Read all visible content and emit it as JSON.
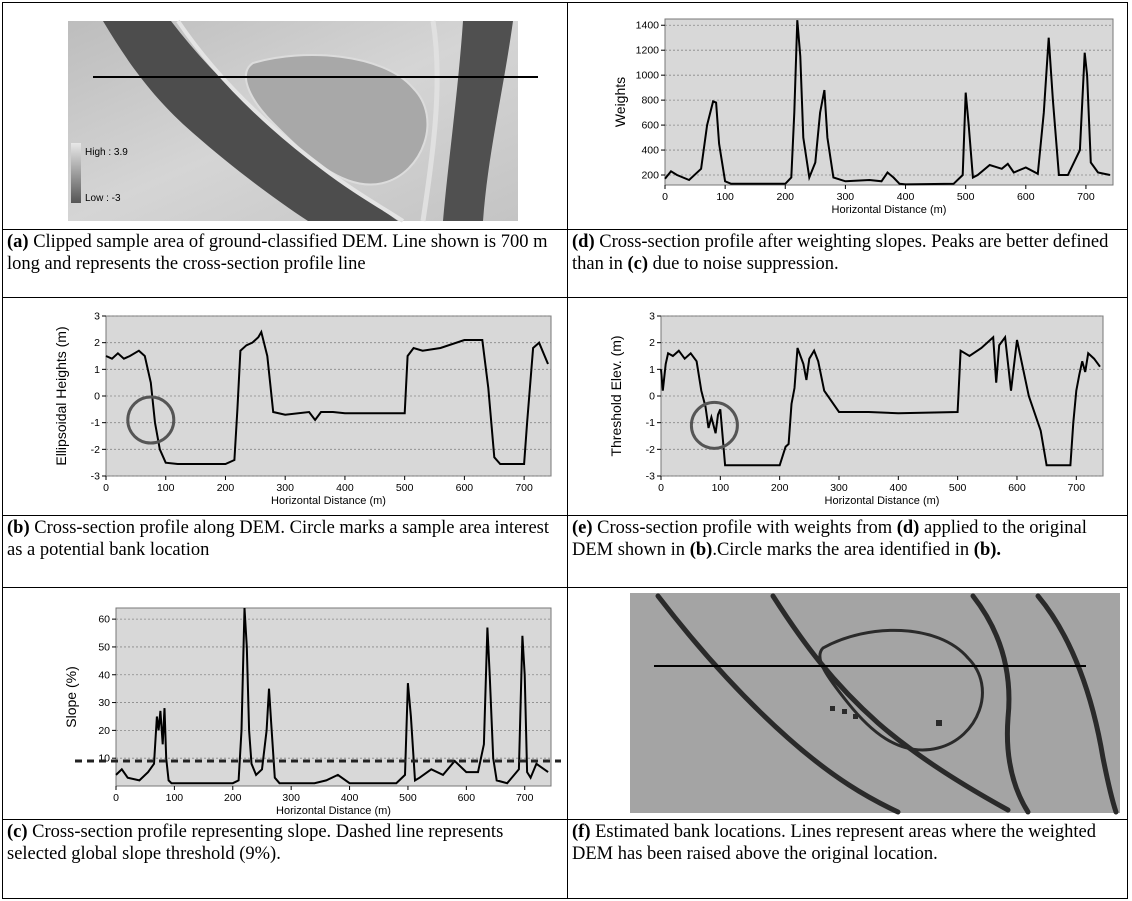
{
  "panels": {
    "a": {
      "legend_high": "High : 3.9",
      "legend_low": "Low : -3",
      "caption_tag": "(a)",
      "caption_text": " Clipped sample area of ground-classified DEM. Line shown is 700 m long and represents the cross-section profile line"
    },
    "b": {
      "caption_tag": "(b)",
      "caption_text": " Cross-section profile along DEM. Circle marks a sample area interest as a potential bank location"
    },
    "c": {
      "caption_tag": "(c)",
      "caption_text": " Cross-section profile representing slope. Dashed line represents selected global slope threshold (9%)."
    },
    "d": {
      "caption_tag": "(d)",
      "caption_text_1": " Cross-section profile after weighting slopes. Peaks are better defined than in ",
      "caption_ref": "(c)",
      "caption_text_2": " due to noise suppression."
    },
    "e": {
      "caption_tag": "(e)",
      "caption_text_1": " Cross-section profile with weights from ",
      "caption_ref1": "(d)",
      "caption_text_2": " applied to the original DEM shown in ",
      "caption_ref2": "(b)",
      "caption_text_3": ".Circle marks the area identified in ",
      "caption_ref3": "(b)."
    },
    "f": {
      "caption_tag": "(f)",
      "caption_text": " Estimated bank locations.  Lines represent areas where the  weighted DEM has been raised above the original location."
    }
  },
  "chart_data": [
    {
      "id": "d",
      "type": "line",
      "xlabel": "Horizontal Distance (m)",
      "ylabel": "Weights",
      "xlim": [
        0,
        745
      ],
      "ylim": [
        120,
        1450
      ],
      "xticks": [
        0,
        100,
        200,
        300,
        400,
        500,
        600,
        700
      ],
      "yticks": [
        200,
        400,
        600,
        800,
        1000,
        1200,
        1400
      ],
      "grid": true,
      "x": [
        0,
        10,
        20,
        40,
        60,
        70,
        80,
        85,
        90,
        100,
        110,
        150,
        200,
        210,
        215,
        220,
        225,
        230,
        240,
        250,
        258,
        265,
        270,
        280,
        300,
        340,
        360,
        370,
        380,
        390,
        400,
        480,
        495,
        500,
        505,
        512,
        520,
        540,
        560,
        570,
        580,
        600,
        620,
        630,
        638,
        645,
        655,
        670,
        690,
        698,
        702,
        708,
        720,
        740
      ],
      "y": [
        170,
        230,
        200,
        160,
        250,
        600,
        790,
        780,
        450,
        150,
        130,
        130,
        130,
        180,
        700,
        1440,
        1150,
        500,
        180,
        300,
        700,
        880,
        500,
        180,
        150,
        160,
        150,
        220,
        180,
        130,
        125,
        130,
        200,
        860,
        600,
        180,
        200,
        280,
        250,
        290,
        220,
        260,
        210,
        700,
        1300,
        800,
        200,
        200,
        400,
        1180,
        1000,
        300,
        220,
        200
      ]
    },
    {
      "id": "b",
      "type": "line",
      "xlabel": "Horizontal Distance (m)",
      "ylabel": "Ellipsoidal Heights (m)",
      "xlim": [
        0,
        745
      ],
      "ylim": [
        -3,
        3
      ],
      "xticks": [
        0,
        100,
        200,
        300,
        400,
        500,
        600,
        700
      ],
      "yticks": [
        -3,
        -2,
        -1,
        0,
        1,
        2,
        3
      ],
      "grid": true,
      "x": [
        0,
        10,
        20,
        30,
        40,
        55,
        65,
        75,
        82,
        90,
        100,
        120,
        150,
        200,
        215,
        220,
        225,
        235,
        245,
        255,
        260,
        270,
        280,
        300,
        340,
        350,
        360,
        380,
        400,
        500,
        505,
        515,
        530,
        560,
        600,
        630,
        640,
        650,
        660,
        700,
        705,
        715,
        725,
        740
      ],
      "y": [
        1.5,
        1.4,
        1.6,
        1.4,
        1.5,
        1.7,
        1.5,
        0.5,
        -1.0,
        -2.0,
        -2.5,
        -2.55,
        -2.55,
        -2.55,
        -2.4,
        -0.5,
        1.7,
        1.9,
        2.0,
        2.2,
        2.4,
        1.5,
        -0.6,
        -0.7,
        -0.6,
        -0.9,
        -0.6,
        -0.6,
        -0.65,
        -0.65,
        1.5,
        1.8,
        1.7,
        1.8,
        2.1,
        2.1,
        0.3,
        -2.3,
        -2.55,
        -2.55,
        -1.0,
        1.8,
        2.0,
        1.2
      ]
    },
    {
      "id": "e",
      "type": "line",
      "xlabel": "Horizontal Distance (m)",
      "ylabel": "Threshold Elev. (m)",
      "xlim": [
        0,
        745
      ],
      "ylim": [
        -3,
        3
      ],
      "xticks": [
        0,
        100,
        200,
        300,
        400,
        500,
        600,
        700
      ],
      "yticks": [
        -3,
        -2,
        -1,
        0,
        1,
        2,
        3
      ],
      "grid": true,
      "x": [
        0,
        3,
        8,
        12,
        20,
        30,
        40,
        50,
        60,
        68,
        75,
        80,
        85,
        92,
        96,
        100,
        108,
        120,
        150,
        200,
        210,
        215,
        220,
        225,
        230,
        240,
        245,
        250,
        258,
        265,
        275,
        300,
        350,
        400,
        500,
        505,
        520,
        540,
        560,
        565,
        570,
        580,
        590,
        600,
        620,
        640,
        650,
        660,
        690,
        695,
        700,
        705,
        710,
        715,
        720,
        730,
        740
      ],
      "y": [
        1.0,
        0.2,
        1.2,
        1.6,
        1.5,
        1.7,
        1.4,
        1.6,
        1.3,
        0.2,
        -0.4,
        -1.2,
        -0.8,
        -1.4,
        -0.7,
        -0.5,
        -2.6,
        -2.6,
        -2.6,
        -2.6,
        -1.9,
        -1.8,
        -0.3,
        0.3,
        1.8,
        1.2,
        0.6,
        1.4,
        1.7,
        1.3,
        0.2,
        -0.6,
        -0.6,
        -0.65,
        -0.6,
        1.7,
        1.5,
        1.8,
        2.2,
        0.5,
        1.9,
        2.2,
        0.2,
        2.1,
        0.0,
        -1.3,
        -2.6,
        -2.6,
        -2.6,
        -1.0,
        0.2,
        0.8,
        1.3,
        0.9,
        1.6,
        1.4,
        1.1
      ]
    },
    {
      "id": "c",
      "type": "line",
      "xlabel": "Horizontal Distance (m)",
      "ylabel": "Slope (%)",
      "xlim": [
        0,
        745
      ],
      "ylim": [
        0,
        64
      ],
      "xticks": [
        0,
        100,
        200,
        300,
        400,
        500,
        600,
        700
      ],
      "yticks": [
        10,
        20,
        30,
        40,
        50,
        60
      ],
      "grid": true,
      "threshold": 9,
      "x": [
        0,
        10,
        20,
        40,
        55,
        65,
        70,
        73,
        76,
        80,
        83,
        86,
        90,
        95,
        100,
        150,
        200,
        210,
        215,
        220,
        224,
        228,
        232,
        240,
        250,
        258,
        262,
        266,
        272,
        280,
        300,
        340,
        360,
        380,
        400,
        480,
        495,
        500,
        505,
        512,
        520,
        540,
        560,
        580,
        600,
        620,
        630,
        636,
        640,
        646,
        652,
        670,
        690,
        696,
        700,
        704,
        710,
        720,
        740
      ],
      "y": [
        4,
        6,
        3,
        2,
        5,
        8,
        25,
        20,
        27,
        15,
        28,
        10,
        2,
        1,
        1,
        1,
        1,
        2,
        20,
        64,
        50,
        20,
        8,
        4,
        6,
        20,
        35,
        22,
        3,
        1,
        1,
        1,
        2,
        4,
        1,
        1,
        4,
        37,
        25,
        2,
        3,
        6,
        4,
        9,
        5,
        5,
        15,
        57,
        40,
        10,
        2,
        1,
        6,
        54,
        40,
        5,
        3,
        8,
        5
      ]
    }
  ]
}
